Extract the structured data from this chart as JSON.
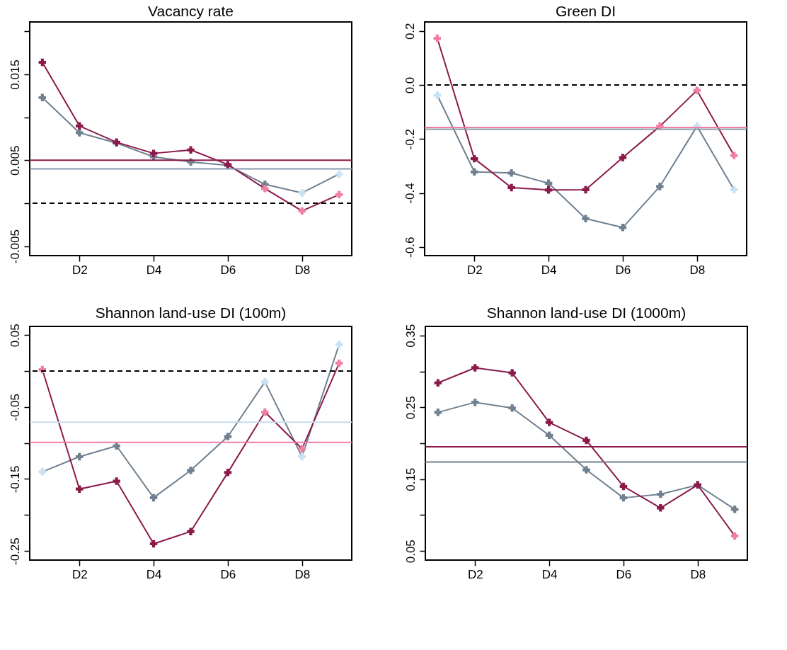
{
  "chart_data": [
    {
      "type": "line",
      "title": "Vacancy rate",
      "categories": [
        null,
        "D2",
        null,
        "D4",
        null,
        "D6",
        null,
        "D8",
        null
      ],
      "marker": "cross",
      "grid": false,
      "ylim": [
        -0.0061,
        0.0211
      ],
      "yticks": [
        -0.005,
        {
          "value": 0,
          "label": null
        },
        0.005,
        {
          "value": 0.01,
          "label": null
        },
        0.015,
        {
          "value": 0.02,
          "label": null
        }
      ],
      "series": [
        {
          "color": "#708090",
          "values": [
            0.0123,
            0.0082,
            0.007,
            0.0054,
            0.0048,
            0.0044,
            0.0022,
            0.0012,
            0.0034
          ],
          "colors": [
            "#708090",
            "#708090",
            "#708090",
            "#708090",
            "#708090",
            "#708090",
            "#708090",
            "#c6e2f5",
            "#c6e2f5"
          ]
        },
        {
          "color": "#8b1a4b",
          "values": [
            0.0164,
            0.009,
            0.0071,
            0.0058,
            0.0062,
            0.0045,
            0.0017,
            -0.0009,
            0.001
          ],
          "colors": [
            "#8b1a4b",
            "#8b1a4b",
            "#8b1a4b",
            "#8b1a4b",
            "#8b1a4b",
            "#8b1a4b",
            "#f07fa6",
            "#f07fa6",
            "#f07fa6"
          ]
        }
      ],
      "ref_lines": [
        {
          "axis": "y",
          "value": 0.005,
          "color": "#8b1a4b",
          "line_style": "solid"
        },
        {
          "axis": "y",
          "value": 0.004,
          "color": "#8899b0",
          "line_style": "solid"
        },
        {
          "axis": "y",
          "value": 0,
          "color": "#000000",
          "line_style": "dashed"
        }
      ]
    },
    {
      "type": "line",
      "title": "Green DI",
      "categories": [
        null,
        "D2",
        null,
        "D4",
        null,
        "D6",
        null,
        "D8",
        null
      ],
      "marker": "cross",
      "grid": false,
      "ylim": [
        -0.632,
        0.2335
      ],
      "yticks": [
        -0.6,
        -0.4,
        -0.2,
        {
          "value": 0,
          "label": "0.0"
        },
        0.2
      ],
      "series": [
        {
          "color": "#708090",
          "values": [
            -0.038,
            -0.322,
            -0.326,
            -0.364,
            -0.495,
            -0.528,
            -0.376,
            -0.153,
            -0.388
          ],
          "colors": [
            "#c6e2f5",
            "#708090",
            "#708090",
            "#708090",
            "#708090",
            "#708090",
            "#708090",
            "#c6e2f5",
            "#c6e2f5"
          ]
        },
        {
          "color": "#8b1a4b",
          "values": [
            0.173,
            -0.273,
            -0.38,
            -0.389,
            -0.388,
            -0.269,
            -0.153,
            -0.02,
            -0.261
          ],
          "colors": [
            "#f07fa6",
            "#8b1a4b",
            "#8b1a4b",
            "#8b1a4b",
            "#8b1a4b",
            "#8b1a4b",
            "#f07fa6",
            "#f07fa6",
            "#f07fa6"
          ]
        }
      ],
      "ref_lines": [
        {
          "axis": "y",
          "value": -0.157,
          "color": "#f07fa6",
          "line_style": "solid"
        },
        {
          "axis": "y",
          "value": -0.164,
          "color": "#8c99a8",
          "line_style": "solid"
        },
        {
          "axis": "y",
          "value": 0,
          "color": "#000000",
          "line_style": "dashed"
        }
      ]
    },
    {
      "type": "line",
      "title": "Shannon land-use DI (100m)",
      "categories": [
        null,
        "D2",
        null,
        "D4",
        null,
        "D6",
        null,
        "D8",
        null
      ],
      "marker": "cross",
      "grid": false,
      "ylim": [
        -0.2627,
        0.0621
      ],
      "yticks": [
        -0.25,
        {
          "value": -0.2,
          "label": null
        },
        -0.15,
        {
          "value": -0.1,
          "label": null
        },
        -0.05,
        {
          "value": 0,
          "label": null
        },
        0.05
      ],
      "series": [
        {
          "color": "#708090",
          "values": [
            -0.14,
            -0.119,
            -0.104,
            -0.176,
            -0.138,
            -0.091,
            -0.015,
            -0.119,
            0.037
          ],
          "colors": [
            "#c6e2f5",
            "#708090",
            "#708090",
            "#708090",
            "#708090",
            "#708090",
            "#c6e2f5",
            "#c6e2f5",
            "#c6e2f5"
          ]
        },
        {
          "color": "#8b1a4b",
          "values": [
            0.002,
            -0.164,
            -0.153,
            -0.24,
            -0.223,
            -0.141,
            -0.057,
            -0.108,
            0.011
          ],
          "colors": [
            "#f07fa6",
            "#8b1a4b",
            "#8b1a4b",
            "#8b1a4b",
            "#8b1a4b",
            "#8b1a4b",
            "#f07fa6",
            "#f07fa6",
            "#f07fa6"
          ]
        }
      ],
      "ref_lines": [
        {
          "axis": "y",
          "value": -0.071,
          "color": "#c6dcee",
          "line_style": "solid"
        },
        {
          "axis": "y",
          "value": -0.099,
          "color": "#f07fa6",
          "line_style": "solid"
        },
        {
          "axis": "y",
          "value": 0,
          "color": "#000000",
          "line_style": "dashed"
        }
      ]
    },
    {
      "type": "line",
      "title": "Shannon land-use DI (1000m)",
      "categories": [
        null,
        "D2",
        null,
        "D4",
        null,
        "D6",
        null,
        "D8",
        null
      ],
      "marker": "cross",
      "grid": false,
      "ylim": [
        0.0374,
        0.3626
      ],
      "yticks": [
        0.05,
        {
          "value": 0.1,
          "label": null
        },
        0.15,
        {
          "value": 0.2,
          "label": null
        },
        0.25,
        {
          "value": 0.3,
          "label": null
        },
        0.35
      ],
      "series": [
        {
          "color": "#708090",
          "values": [
            0.243,
            0.257,
            0.249,
            0.211,
            0.163,
            0.124,
            0.129,
            0.142,
            0.108
          ],
          "colors": [
            "#708090",
            "#708090",
            "#708090",
            "#708090",
            "#708090",
            "#708090",
            "#708090",
            "#708090",
            "#708090"
          ]
        },
        {
          "color": "#8b1a4b",
          "values": [
            0.284,
            0.305,
            0.298,
            0.229,
            0.204,
            0.14,
            0.11,
            0.142,
            0.071
          ],
          "colors": [
            "#8b1a4b",
            "#8b1a4b",
            "#8b1a4b",
            "#8b1a4b",
            "#8b1a4b",
            "#8b1a4b",
            "#8b1a4b",
            "#8b1a4b",
            "#f07fa6"
          ]
        }
      ],
      "ref_lines": [
        {
          "axis": "y",
          "value": 0.195,
          "color": "#8b1a4b",
          "line_style": "solid"
        },
        {
          "axis": "y",
          "value": 0.174,
          "color": "#708090",
          "line_style": "solid"
        }
      ]
    }
  ]
}
